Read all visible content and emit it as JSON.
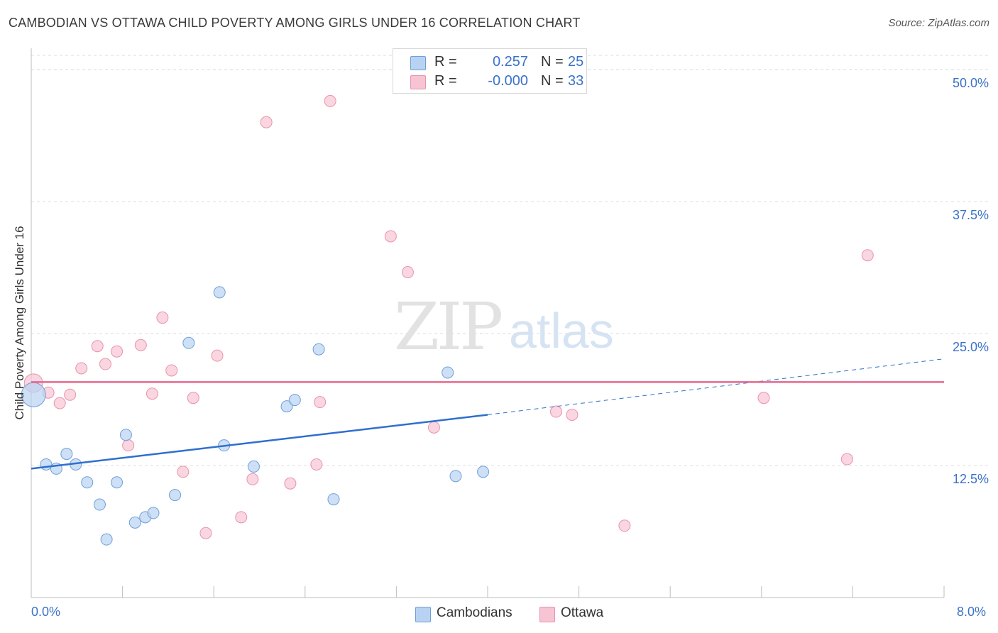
{
  "header": {
    "title": "CAMBODIAN VS OTTAWA CHILD POVERTY AMONG GIRLS UNDER 16 CORRELATION CHART",
    "source": "Source: ZipAtlas.com"
  },
  "watermark": {
    "zip": "ZIP",
    "atlas": "atlas"
  },
  "legend_top": {
    "rows": [
      {
        "r_label": "R =",
        "r_value": "0.257",
        "n_label": "N =",
        "n_value": "25",
        "color": "#b8d3f2"
      },
      {
        "r_label": "R =",
        "r_value": "-0.000",
        "n_label": "N =",
        "n_value": "33",
        "color": "#f7c4d3"
      }
    ]
  },
  "legend_bottom": {
    "items": [
      {
        "label": "Cambodians",
        "color": "#b8d3f2"
      },
      {
        "label": "Ottawa",
        "color": "#f7c4d3"
      }
    ]
  },
  "colors": {
    "blue_fill": "#b8d3f2",
    "blue_stroke": "#6f9fd8",
    "blue_line": "#2f6fce",
    "pink_fill": "#f7c4d3",
    "pink_stroke": "#e993ae",
    "pink_line": "#e7668e",
    "axis_label": "#3a72c8",
    "grid": "#dcdcdc"
  },
  "chart_data": {
    "type": "scatter",
    "title": "CAMBODIAN VS OTTAWA CHILD POVERTY AMONG GIRLS UNDER 16 CORRELATION CHART",
    "xlabel": "",
    "ylabel": "Child Poverty Among Girls Under 16",
    "xlim": [
      0,
      8
    ],
    "ylim": [
      0,
      52
    ],
    "x_tick_labels": [
      "0.0%",
      "8.0%"
    ],
    "y_ticks": [
      12.5,
      25.0,
      37.5,
      50.0
    ],
    "y_tick_labels": [
      "12.5%",
      "25.0%",
      "37.5%",
      "50.0%"
    ],
    "grid": true,
    "legend": "bottom",
    "series": [
      {
        "name": "Cambodians",
        "r": 0.257,
        "n": 25,
        "points": [
          [
            0.02,
            19.2
          ],
          [
            0.13,
            12.6
          ],
          [
            0.22,
            12.2
          ],
          [
            0.31,
            13.6
          ],
          [
            0.39,
            12.6
          ],
          [
            0.49,
            10.9
          ],
          [
            0.6,
            8.8
          ],
          [
            0.66,
            5.5
          ],
          [
            0.75,
            10.9
          ],
          [
            0.83,
            15.4
          ],
          [
            0.91,
            7.1
          ],
          [
            1.0,
            7.6
          ],
          [
            1.07,
            8.0
          ],
          [
            1.26,
            9.7
          ],
          [
            1.38,
            24.1
          ],
          [
            1.65,
            28.9
          ],
          [
            1.69,
            14.4
          ],
          [
            1.95,
            12.4
          ],
          [
            2.24,
            18.1
          ],
          [
            2.31,
            18.7
          ],
          [
            2.52,
            23.5
          ],
          [
            2.65,
            9.3
          ],
          [
            3.65,
            21.3
          ],
          [
            3.72,
            11.5
          ],
          [
            3.96,
            11.9
          ]
        ],
        "trend": {
          "x": [
            0,
            4.0
          ],
          "y": [
            12.2,
            17.3
          ]
        },
        "trend_extended": {
          "x": [
            4.0,
            8.0
          ],
          "y": [
            17.3,
            22.6
          ]
        }
      },
      {
        "name": "Ottawa",
        "r": -0.0,
        "n": 33,
        "points": [
          [
            0.02,
            20.3
          ],
          [
            0.15,
            19.4
          ],
          [
            0.25,
            18.4
          ],
          [
            0.34,
            19.2
          ],
          [
            0.44,
            21.7
          ],
          [
            0.58,
            23.8
          ],
          [
            0.65,
            22.1
          ],
          [
            0.75,
            23.3
          ],
          [
            0.85,
            14.4
          ],
          [
            0.96,
            23.9
          ],
          [
            1.06,
            19.3
          ],
          [
            1.15,
            26.5
          ],
          [
            1.23,
            21.5
          ],
          [
            1.33,
            11.9
          ],
          [
            1.42,
            18.9
          ],
          [
            1.53,
            6.1
          ],
          [
            1.63,
            22.9
          ],
          [
            1.84,
            7.6
          ],
          [
            1.94,
            11.2
          ],
          [
            2.06,
            45.0
          ],
          [
            2.27,
            10.8
          ],
          [
            2.5,
            12.6
          ],
          [
            2.53,
            18.5
          ],
          [
            2.62,
            47.0
          ],
          [
            3.15,
            34.2
          ],
          [
            3.3,
            30.8
          ],
          [
            3.53,
            16.1
          ],
          [
            4.6,
            17.6
          ],
          [
            4.74,
            17.3
          ],
          [
            5.2,
            6.8
          ],
          [
            6.42,
            18.9
          ],
          [
            7.15,
            13.1
          ],
          [
            7.33,
            32.4
          ]
        ],
        "trend": {
          "x": [
            0,
            8.0
          ],
          "y": [
            20.4,
            20.4
          ]
        }
      }
    ]
  }
}
